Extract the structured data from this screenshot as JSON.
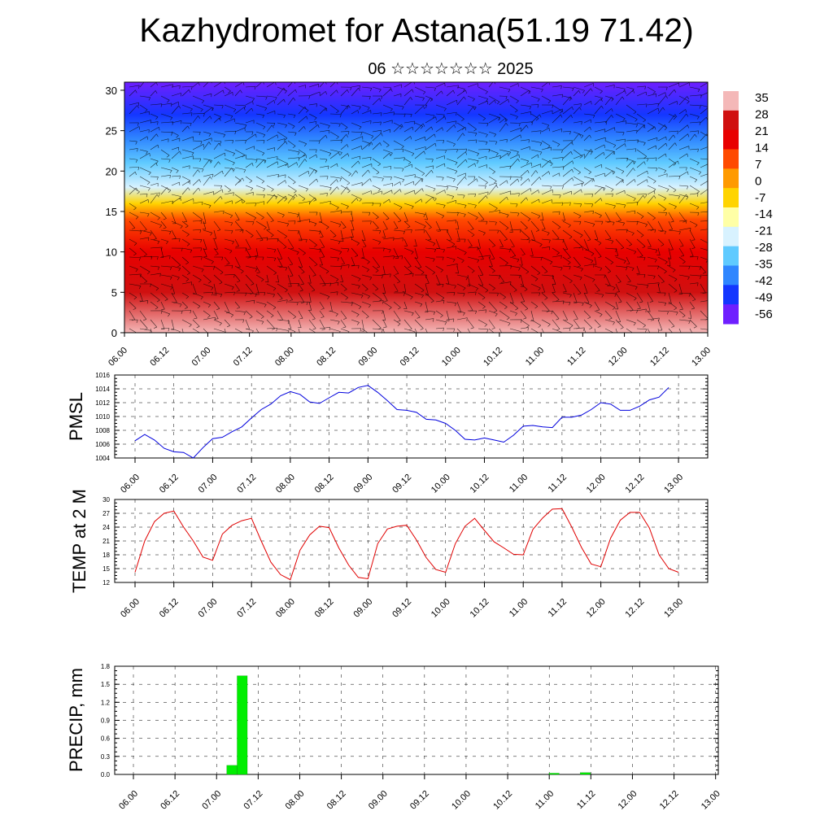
{
  "title": "Kazhydromet for Astana(51.19 71.42)",
  "subtitle": "06 ☆☆☆☆☆☆☆ 2025",
  "time_labels": [
    "06.00",
    "06.12",
    "07.00",
    "07.12",
    "08.00",
    "08.12",
    "09.00",
    "09.12",
    "10.00",
    "10.12",
    "11.00",
    "11.12",
    "12.00",
    "12.12",
    "13.00"
  ],
  "chart_data": [
    {
      "type": "heatmap",
      "title": "",
      "xlabel": "",
      "ylabel": "",
      "ylim": [
        0,
        31
      ],
      "yticks": [
        0,
        5,
        10,
        15,
        20,
        25,
        30
      ],
      "colorbar": {
        "labels": [
          "35",
          "28",
          "21",
          "14",
          "7",
          "0",
          "-7",
          "-14",
          "-21",
          "-28",
          "-35",
          "-42",
          "-49",
          "-56"
        ],
        "range": [
          -63,
          38
        ],
        "colors": [
          "#6f1fff",
          "#1436ff",
          "#2f86ff",
          "#5fcaff",
          "#d8f2ff",
          "#ffffa6",
          "#ffd400",
          "#ff9a00",
          "#ff4a00",
          "#e80000",
          "#d01010",
          "#f4b8b8"
        ]
      },
      "temperature_profile": [
        {
          "level": 0,
          "value": 31
        },
        {
          "level": 5,
          "value": 24
        },
        {
          "level": 10,
          "value": 16
        },
        {
          "level": 14,
          "value": 6
        },
        {
          "level": 16,
          "value": -6
        },
        {
          "level": 18,
          "value": -22
        },
        {
          "level": 21,
          "value": -34
        },
        {
          "level": 24,
          "value": -46
        },
        {
          "level": 27,
          "value": -52
        },
        {
          "level": 31,
          "value": -58
        }
      ],
      "overlay": "wind barbs"
    },
    {
      "type": "line",
      "ylabel": "PMSL",
      "ylim": [
        1004,
        1016
      ],
      "yticks": [
        1004,
        1006,
        1008,
        1010,
        1012,
        1014,
        1016
      ],
      "series": [
        {
          "color": "#0000dd",
          "values": [
            1006.5,
            1007.4,
            1006.6,
            1005.4,
            1004.9,
            1004.8,
            1004.0,
            1005.5,
            1006.8,
            1007.0,
            1007.8,
            1008.5,
            1009.8,
            1011.0,
            1011.8,
            1013.0,
            1013.6,
            1013.2,
            1012.1,
            1011.9,
            1012.7,
            1013.5,
            1013.4,
            1014.2,
            1014.5,
            1013.5,
            1012.3,
            1011.0,
            1010.9,
            1010.6,
            1009.6,
            1009.5,
            1009.0,
            1008.0,
            1006.7,
            1006.6,
            1006.9,
            1006.6,
            1006.3,
            1007.3,
            1008.6,
            1008.7,
            1008.5,
            1008.4,
            1009.9,
            1009.9,
            1010.2,
            1011.0,
            1012.0,
            1011.8,
            1010.9,
            1010.9,
            1011.5,
            1012.4,
            1012.8,
            1014.2
          ]
        }
      ]
    },
    {
      "type": "line",
      "ylabel": "TEMP at 2 M",
      "ylim": [
        12,
        30
      ],
      "yticks": [
        12,
        15,
        18,
        21,
        24,
        27,
        30
      ],
      "series": [
        {
          "color": "#e00000",
          "values": [
            14.2,
            21,
            25.2,
            27,
            27.5,
            24,
            21,
            17.5,
            16.8,
            22.5,
            24.4,
            25.4,
            25.9,
            21,
            16.4,
            13.7,
            12.6,
            19,
            22.3,
            24.2,
            23.9,
            19.5,
            15.8,
            13.1,
            12.8,
            20.4,
            23.6,
            24.2,
            24.4,
            21.2,
            17.4,
            14.8,
            14.2,
            20.4,
            24.2,
            25.9,
            23.3,
            20.8,
            19.5,
            18.1,
            18,
            23.5,
            26,
            27.9,
            28,
            24,
            19.6,
            16,
            15.4,
            21.6,
            25.5,
            27.2,
            27.2,
            23.8,
            18,
            15,
            14.2
          ]
        }
      ]
    },
    {
      "type": "bar",
      "ylabel": "PRECIP, mm",
      "ylim": [
        0,
        1.8
      ],
      "yticks": [
        "0.0",
        "0.3",
        "0.6",
        "0.9",
        "1.2",
        "1.5",
        "1.8"
      ],
      "series": [
        {
          "color": "#00ee00",
          "values": [
            0,
            0,
            0,
            0,
            0,
            0,
            0,
            0,
            0,
            0.15,
            1.64,
            0,
            0,
            0,
            0,
            0,
            0,
            0,
            0,
            0,
            0,
            0,
            0,
            0,
            0,
            0,
            0,
            0,
            0,
            0,
            0,
            0,
            0,
            0,
            0,
            0,
            0,
            0,
            0,
            0,
            0.02,
            0,
            0,
            0.03,
            0,
            0,
            0,
            0,
            0,
            0,
            0,
            0,
            0,
            0,
            0,
            0
          ]
        }
      ]
    }
  ]
}
